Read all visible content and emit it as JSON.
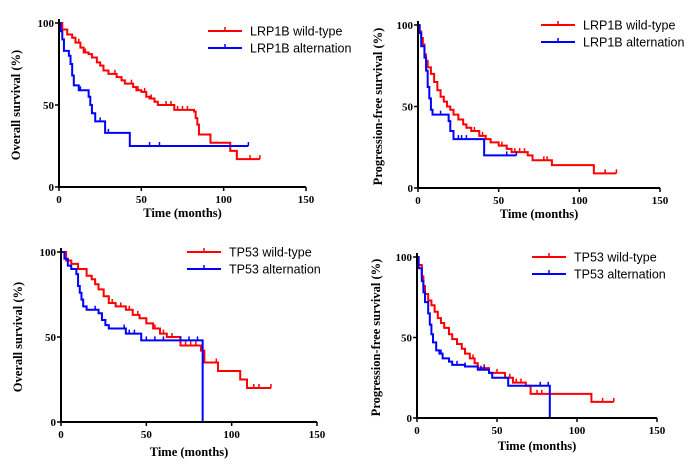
{
  "chart_data": [
    {
      "type": "line",
      "subtype": "kaplan-meier step",
      "xlabel": "Time (months)",
      "ylabel": "Overall survival (%)",
      "xlim": [
        0,
        150
      ],
      "ylim": [
        0,
        100
      ],
      "xticks": [
        "0",
        "50",
        "100",
        "150"
      ],
      "yticks": [
        "0",
        "50",
        "100"
      ],
      "grid": false,
      "legend": "top-right",
      "series": [
        {
          "name": "LRP1B wild-type",
          "color": "#ff0000",
          "points": [
            [
              0,
              100
            ],
            [
              2,
              96
            ],
            [
              5,
              93
            ],
            [
              8,
              91
            ],
            [
              10,
              88
            ],
            [
              13,
              85
            ],
            [
              15,
              82
            ],
            [
              18,
              81
            ],
            [
              20,
              79
            ],
            [
              23,
              76
            ],
            [
              25,
              74
            ],
            [
              27,
              71
            ],
            [
              30,
              69
            ],
            [
              35,
              67
            ],
            [
              38,
              65
            ],
            [
              40,
              63
            ],
            [
              45,
              61
            ],
            [
              47,
              59
            ],
            [
              50,
              58
            ],
            [
              53,
              55
            ],
            [
              55,
              54
            ],
            [
              58,
              52
            ],
            [
              60,
              50
            ],
            [
              70,
              47
            ],
            [
              82,
              46
            ],
            [
              83,
              42
            ],
            [
              84,
              38
            ],
            [
              85,
              32
            ],
            [
              92,
              27
            ],
            [
              104,
              22
            ],
            [
              108,
              17
            ],
            [
              122,
              17
            ]
          ],
          "censored": [
            12,
            16,
            20,
            25,
            30,
            34,
            38,
            44,
            48,
            52,
            56,
            60,
            65,
            68,
            72,
            75,
            78,
            92,
            116,
            122
          ]
        },
        {
          "name": "LRP1B alternation",
          "color": "#0000ff",
          "points": [
            [
              0,
              100
            ],
            [
              1,
              95
            ],
            [
              2,
              90
            ],
            [
              3,
              83
            ],
            [
              6,
              80
            ],
            [
              7,
              75
            ],
            [
              8,
              68
            ],
            [
              9,
              62
            ],
            [
              12,
              59
            ],
            [
              18,
              55
            ],
            [
              19,
              50
            ],
            [
              20,
              45
            ],
            [
              22,
              40
            ],
            [
              28,
              33
            ],
            [
              43,
              25
            ],
            [
              115,
              25
            ]
          ],
          "censored": [
            13,
            25,
            30,
            55,
            61,
            115
          ]
        }
      ]
    },
    {
      "type": "line",
      "subtype": "kaplan-meier step",
      "xlabel": "Time (months)",
      "ylabel": "Progression-free survival (%)",
      "xlim": [
        0,
        150
      ],
      "ylim": [
        0,
        100
      ],
      "xticks": [
        "0",
        "50",
        "100",
        "150"
      ],
      "yticks": [
        "0",
        "50",
        "100"
      ],
      "grid": false,
      "legend": "top-right",
      "series": [
        {
          "name": "LRP1B wild-type",
          "color": "#ff0000",
          "points": [
            [
              0,
              100
            ],
            [
              1,
              96
            ],
            [
              2,
              92
            ],
            [
              3,
              88
            ],
            [
              4,
              82
            ],
            [
              5,
              78
            ],
            [
              6,
              74
            ],
            [
              8,
              70
            ],
            [
              10,
              65
            ],
            [
              12,
              60
            ],
            [
              14,
              56
            ],
            [
              16,
              53
            ],
            [
              18,
              50
            ],
            [
              20,
              48
            ],
            [
              22,
              45
            ],
            [
              25,
              42
            ],
            [
              28,
              39
            ],
            [
              30,
              37
            ],
            [
              33,
              35
            ],
            [
              38,
              32
            ],
            [
              42,
              30
            ],
            [
              45,
              28
            ],
            [
              50,
              26
            ],
            [
              55,
              24
            ],
            [
              58,
              22
            ],
            [
              68,
              20
            ],
            [
              71,
              17
            ],
            [
              83,
              14
            ],
            [
              109,
              9
            ],
            [
              123,
              9
            ]
          ],
          "censored": [
            20,
            30,
            35,
            40,
            45,
            52,
            60,
            63,
            66,
            78,
            80,
            116,
            123
          ]
        },
        {
          "name": "LRP1B alternation",
          "color": "#0000ff",
          "points": [
            [
              0,
              100
            ],
            [
              1,
              95
            ],
            [
              2,
              87
            ],
            [
              4,
              80
            ],
            [
              5,
              72
            ],
            [
              6,
              62
            ],
            [
              7,
              55
            ],
            [
              8,
              48
            ],
            [
              9,
              45
            ],
            [
              19,
              41
            ],
            [
              20,
              35
            ],
            [
              22,
              30
            ],
            [
              41,
              20
            ],
            [
              61,
              20
            ]
          ],
          "censored": [
            14,
            19,
            25,
            27,
            30,
            55,
            61
          ]
        }
      ]
    },
    {
      "type": "line",
      "subtype": "kaplan-meier step",
      "xlabel": "Time (months)",
      "ylabel": "Overall survival (%)",
      "xlim": [
        0,
        150
      ],
      "ylim": [
        0,
        100
      ],
      "xticks": [
        "0",
        "50",
        "100",
        "150"
      ],
      "yticks": [
        "0",
        "50",
        "100"
      ],
      "grid": false,
      "legend": "top-right",
      "series": [
        {
          "name": "TP53 wild-type",
          "color": "#ff0000",
          "points": [
            [
              0,
              100
            ],
            [
              3,
              95
            ],
            [
              6,
              93
            ],
            [
              10,
              90
            ],
            [
              15,
              86
            ],
            [
              18,
              84
            ],
            [
              20,
              81
            ],
            [
              22,
              78
            ],
            [
              25,
              74
            ],
            [
              28,
              70
            ],
            [
              32,
              68
            ],
            [
              38,
              66
            ],
            [
              42,
              63
            ],
            [
              46,
              61
            ],
            [
              50,
              58
            ],
            [
              54,
              55
            ],
            [
              58,
              52
            ],
            [
              62,
              50
            ],
            [
              70,
              45
            ],
            [
              82,
              42
            ],
            [
              84,
              35
            ],
            [
              92,
              30
            ],
            [
              105,
              25
            ],
            [
              109,
              20
            ],
            [
              123,
              20
            ]
          ],
          "censored": [
            18,
            30,
            35,
            40,
            45,
            50,
            55,
            60,
            65,
            70,
            73,
            76,
            79,
            82,
            91,
            113,
            116,
            123
          ]
        },
        {
          "name": "TP53 alternation",
          "color": "#0000ff",
          "points": [
            [
              0,
              100
            ],
            [
              2,
              96
            ],
            [
              4,
              92
            ],
            [
              6,
              90
            ],
            [
              9,
              87
            ],
            [
              10,
              80
            ],
            [
              11,
              76
            ],
            [
              12,
              72
            ],
            [
              13,
              68
            ],
            [
              15,
              66
            ],
            [
              22,
              64
            ],
            [
              24,
              60
            ],
            [
              26,
              57
            ],
            [
              28,
              55
            ],
            [
              38,
              52
            ],
            [
              47,
              48
            ],
            [
              83,
              48
            ],
            [
              83,
              0
            ]
          ],
          "censored": [
            15,
            20,
            37,
            40,
            43,
            47,
            50,
            55,
            60,
            70,
            75,
            80
          ]
        }
      ]
    },
    {
      "type": "line",
      "subtype": "kaplan-meier step",
      "xlabel": "Time (months)",
      "ylabel": "Progression-free survival (%)",
      "xlim": [
        0,
        150
      ],
      "ylim": [
        0,
        100
      ],
      "xticks": [
        "0",
        "50",
        "100",
        "150"
      ],
      "yticks": [
        "0",
        "50",
        "100"
      ],
      "grid": false,
      "legend": "top-right",
      "series": [
        {
          "name": "TP53 wild-type",
          "color": "#ff0000",
          "points": [
            [
              0,
              100
            ],
            [
              1,
              95
            ],
            [
              3,
              88
            ],
            [
              4,
              82
            ],
            [
              5,
              77
            ],
            [
              7,
              73
            ],
            [
              9,
              70
            ],
            [
              11,
              66
            ],
            [
              13,
              62
            ],
            [
              15,
              59
            ],
            [
              17,
              56
            ],
            [
              20,
              52
            ],
            [
              22,
              49
            ],
            [
              25,
              46
            ],
            [
              28,
              43
            ],
            [
              30,
              40
            ],
            [
              33,
              37
            ],
            [
              36,
              34
            ],
            [
              38,
              31
            ],
            [
              45,
              28
            ],
            [
              55,
              25
            ],
            [
              60,
              22
            ],
            [
              68,
              20
            ],
            [
              71,
              15
            ],
            [
              109,
              10
            ],
            [
              123,
              10
            ]
          ],
          "censored": [
            35,
            42,
            45,
            50,
            58,
            62,
            65,
            68,
            75,
            78,
            116,
            123
          ]
        },
        {
          "name": "TP53 alternation",
          "color": "#0000ff",
          "points": [
            [
              0,
              100
            ],
            [
              1,
              93
            ],
            [
              3,
              85
            ],
            [
              4,
              78
            ],
            [
              5,
              72
            ],
            [
              7,
              65
            ],
            [
              8,
              58
            ],
            [
              9,
              52
            ],
            [
              10,
              47
            ],
            [
              12,
              42
            ],
            [
              14,
              40
            ],
            [
              16,
              37
            ],
            [
              20,
              35
            ],
            [
              22,
              33
            ],
            [
              30,
              32
            ],
            [
              38,
              30
            ],
            [
              45,
              28
            ],
            [
              47,
              25
            ],
            [
              57,
              20
            ],
            [
              83,
              20
            ],
            [
              83,
              0
            ]
          ],
          "censored": [
            15,
            25,
            30,
            40,
            42,
            77,
            82
          ]
        }
      ]
    }
  ]
}
